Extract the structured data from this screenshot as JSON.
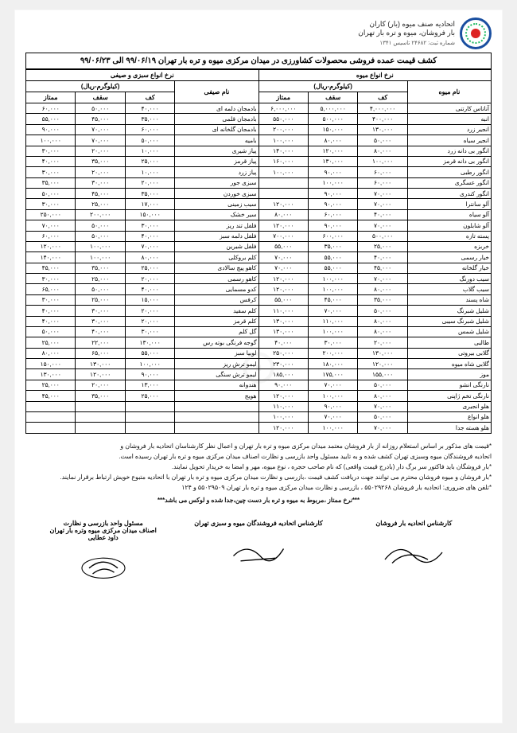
{
  "header": {
    "org_line1": "اتحادیه صنف میوه (بار) کاران",
    "org_line2": "بار فروشان، میوه و تره بار تهران",
    "reg": "شماره ثبت: ۲۴۶۸۲   تاسیس ۱۳۴۱"
  },
  "title": "کشف قیمت عمده فروشی محصولات کشاورزی در میدان مرکزی میوه و تره بار تهران ۹۹/۰۶/۱۹ الی ۹۹/۰۶/۲۳",
  "section_headers": {
    "fruit": "نرخ انواع میوه",
    "veg": "نرخ انواع سبزی و صیفی",
    "unit": "(کیلوگرم-ریال)",
    "name_fruit": "نام میوه",
    "name_veg": "نام صیفی",
    "kaf": "کف",
    "saghf": "سقف",
    "momtaz": "ممتاز"
  },
  "fruit_rows": [
    {
      "name": "آناناس کارتنی",
      "kaf": "۴,۰۰۰,۰۰۰",
      "saghf": "۵,۰۰۰,۰۰۰",
      "momtaz": "۶,۰۰۰,۰۰۰"
    },
    {
      "name": "انبه",
      "kaf": "۴۰۰,۰۰۰",
      "saghf": "۵۰۰,۰۰۰",
      "momtaz": "۵۵۰,۰۰۰"
    },
    {
      "name": "انجیر زرد",
      "kaf": "۱۳۰,۰۰۰",
      "saghf": "۱۵۰,۰۰۰",
      "momtaz": "۲۰۰,۰۰۰"
    },
    {
      "name": "انجیر سیاه",
      "kaf": "۵۰,۰۰۰",
      "saghf": "۸۰,۰۰۰",
      "momtaz": "۱۰۰,۰۰۰"
    },
    {
      "name": "انگور بی دانه زرد",
      "kaf": "۸۰,۰۰۰",
      "saghf": "۱۲۰,۰۰۰",
      "momtaz": "۱۴۰,۰۰۰"
    },
    {
      "name": "انگور بی دانه قرمز",
      "kaf": "۱۰۰,۰۰۰",
      "saghf": "۱۳۰,۰۰۰",
      "momtaz": "۱۶۰,۰۰۰"
    },
    {
      "name": "انگور رطبی",
      "kaf": "۶۰,۰۰۰",
      "saghf": "۹۰,۰۰۰",
      "momtaz": "۱۰۰,۰۰۰"
    },
    {
      "name": "انگور عسگری",
      "kaf": "۶۰,۰۰۰",
      "saghf": "۱۰۰,۰۰۰",
      "momtaz": ""
    },
    {
      "name": "انگور کندری",
      "kaf": "۷۰,۰۰۰",
      "saghf": "۹۰,۰۰۰",
      "momtaz": ""
    },
    {
      "name": "آلو سانترا",
      "kaf": "۷۰,۰۰۰",
      "saghf": "۹۰,۰۰۰",
      "momtaz": "۱۲۰,۰۰۰"
    },
    {
      "name": "آلو سیاه",
      "kaf": "۴۰,۰۰۰",
      "saghf": "۶۰,۰۰۰",
      "momtaz": "۸۰,۰۰۰"
    },
    {
      "name": "آلو شابلون",
      "kaf": "۷۰,۰۰۰",
      "saghf": "۹۰,۰۰۰",
      "momtaz": "۱۲۰,۰۰۰"
    },
    {
      "name": "پسته تازه",
      "kaf": "۵۰۰,۰۰۰",
      "saghf": "۶۰۰,۰۰۰",
      "momtaz": "۷۰۰,۰۰۰"
    },
    {
      "name": "خربزه",
      "kaf": "۲۵,۰۰۰",
      "saghf": "۳۵,۰۰۰",
      "momtaz": "۵۵,۰۰۰"
    },
    {
      "name": "خیار رسمی",
      "kaf": "۴۰,۰۰۰",
      "saghf": "۵۵,۰۰۰",
      "momtaz": "۷۰,۰۰۰"
    },
    {
      "name": "خیار گلخانه",
      "kaf": "۴۵,۰۰۰",
      "saghf": "۵۵,۰۰۰",
      "momtaz": "۷۰,۰۰۰"
    },
    {
      "name": "سیب دورنگ",
      "kaf": "۷۰,۰۰۰",
      "saghf": "۱۰۰,۰۰۰",
      "momtaz": "۱۲۰,۰۰۰"
    },
    {
      "name": "سیب گلاب",
      "kaf": "۸۰,۰۰۰",
      "saghf": "۱۰۰,۰۰۰",
      "momtaz": "۱۲۰,۰۰۰"
    },
    {
      "name": "شاه پسند",
      "kaf": "۳۵,۰۰۰",
      "saghf": "۴۵,۰۰۰",
      "momtaz": "۵۵,۰۰۰"
    },
    {
      "name": "شلیل شبرنگ",
      "kaf": "۵۰,۰۰۰",
      "saghf": "۷۰,۰۰۰",
      "momtaz": "۱۱۰,۰۰۰"
    },
    {
      "name": "شلیل شبرنگ سیبی",
      "kaf": "۸۰,۰۰۰",
      "saghf": "۱۱۰,۰۰۰",
      "momtaz": "۱۳۰,۰۰۰"
    },
    {
      "name": "شلیل شمس",
      "kaf": "۸۰,۰۰۰",
      "saghf": "۱۰۰,۰۰۰",
      "momtaz": "۱۳۰,۰۰۰"
    },
    {
      "name": "طالبی",
      "kaf": "۲۰,۰۰۰",
      "saghf": "۳۰,۰۰۰",
      "momtaz": "۴۰,۰۰۰"
    },
    {
      "name": "گلابی بیروتی",
      "kaf": "۱۳۰,۰۰۰",
      "saghf": "۲۰۰,۰۰۰",
      "momtaz": "۲۵۰,۰۰۰"
    },
    {
      "name": "گلابی شاه میوه",
      "kaf": "۱۲۰,۰۰۰",
      "saghf": "۱۸۰,۰۰۰",
      "momtaz": "۲۳۰,۰۰۰"
    },
    {
      "name": "موز",
      "kaf": "۱۵۵,۰۰۰",
      "saghf": "۱۷۵,۰۰۰",
      "momtaz": "۱۸۵,۰۰۰"
    },
    {
      "name": "نارنگی انشو",
      "kaf": "۵۰,۰۰۰",
      "saghf": "۷۰,۰۰۰",
      "momtaz": "۹۰,۰۰۰"
    },
    {
      "name": "نارنگی تخم ژاپنی",
      "kaf": "۸۰,۰۰۰",
      "saghf": "۱۰۰,۰۰۰",
      "momtaz": "۱۲۰,۰۰۰"
    },
    {
      "name": "هلو انجیری",
      "kaf": "۷۰,۰۰۰",
      "saghf": "۹۰,۰۰۰",
      "momtaz": "۱۱۰,۰۰۰"
    },
    {
      "name": "هلو انواع",
      "kaf": "۵۰,۰۰۰",
      "saghf": "۷۰,۰۰۰",
      "momtaz": "۱۰۰,۰۰۰"
    },
    {
      "name": "هلو هسته جدا",
      "kaf": "۷۰,۰۰۰",
      "saghf": "۱۰۰,۰۰۰",
      "momtaz": "۱۲۰,۰۰۰"
    }
  ],
  "veg_rows": [
    {
      "name": "بادمجان دلمه ای",
      "kaf": "۴۰,۰۰۰",
      "saghf": "۵۰,۰۰۰",
      "momtaz": "۶۰,۰۰۰"
    },
    {
      "name": "بادمجان قلمی",
      "kaf": "۳۵,۰۰۰",
      "saghf": "۴۵,۰۰۰",
      "momtaz": "۵۵,۰۰۰"
    },
    {
      "name": "بادمجان گلخانه ای",
      "kaf": "۶۰,۰۰۰",
      "saghf": "۷۰,۰۰۰",
      "momtaz": "۹۰,۰۰۰"
    },
    {
      "name": "بامیه",
      "kaf": "۵۰,۰۰۰",
      "saghf": "۷۰,۰۰۰",
      "momtaz": "۱۰۰,۰۰۰"
    },
    {
      "name": "پیاز شیری",
      "kaf": "۱۰,۰۰۰",
      "saghf": "۲۰,۰۰۰",
      "momtaz": "۳۰,۰۰۰"
    },
    {
      "name": "پیاز قرمز",
      "kaf": "۲۵,۰۰۰",
      "saghf": "۳۵,۰۰۰",
      "momtaz": "۴۰,۰۰۰"
    },
    {
      "name": "پیاز زرد",
      "kaf": "۱۰,۰۰۰",
      "saghf": "۲۰,۰۰۰",
      "momtaz": "۳۰,۰۰۰"
    },
    {
      "name": "سبزی جور",
      "kaf": "۲۰,۰۰۰",
      "saghf": "۳۰,۰۰۰",
      "momtaz": "۳۵,۰۰۰"
    },
    {
      "name": "سبزی خوردن",
      "kaf": "۳۵,۰۰۰",
      "saghf": "۴۵,۰۰۰",
      "momtaz": "۵۰,۰۰۰"
    },
    {
      "name": "سیب زمینی",
      "kaf": "۱۷,۰۰۰",
      "saghf": "۲۵,۰۰۰",
      "momtaz": "۳۰,۰۰۰"
    },
    {
      "name": "سیر خشک",
      "kaf": "۱۵۰,۰۰۰",
      "saghf": "۲۰۰,۰۰۰",
      "momtaz": "۲۵۰,۰۰۰"
    },
    {
      "name": "فلفل تند ریز",
      "kaf": "۳۰,۰۰۰",
      "saghf": "۵۰,۰۰۰",
      "momtaz": "۷۰,۰۰۰"
    },
    {
      "name": "فلفل دلمه سبز",
      "kaf": "۴۰,۰۰۰",
      "saghf": "۵۰,۰۰۰",
      "momtaz": "۶۰,۰۰۰"
    },
    {
      "name": "فلفل شیرین",
      "kaf": "۷۰,۰۰۰",
      "saghf": "۱۰۰,۰۰۰",
      "momtaz": "۱۲۰,۰۰۰"
    },
    {
      "name": "کلم بروکلی",
      "kaf": "۸۰,۰۰۰",
      "saghf": "۱۰۰,۰۰۰",
      "momtaz": "۱۴۰,۰۰۰"
    },
    {
      "name": "کاهو پیچ سالادی",
      "kaf": "۲۵,۰۰۰",
      "saghf": "۳۵,۰۰۰",
      "momtaz": "۴۵,۰۰۰"
    },
    {
      "name": "کاهو رسمی",
      "kaf": "۲۰,۰۰۰",
      "saghf": "۲۵,۰۰۰",
      "momtaz": "۳۰,۰۰۰"
    },
    {
      "name": "کدو مسمایی",
      "kaf": "۴۰,۰۰۰",
      "saghf": "۵۰,۰۰۰",
      "momtaz": "۶۵,۰۰۰"
    },
    {
      "name": "کرفس",
      "kaf": "۱۵,۰۰۰",
      "saghf": "۲۵,۰۰۰",
      "momtaz": "۳۰,۰۰۰"
    },
    {
      "name": "کلم سفید",
      "kaf": "۲۰,۰۰۰",
      "saghf": "۳۰,۰۰۰",
      "momtaz": "۴۰,۰۰۰"
    },
    {
      "name": "کلم قرمز",
      "kaf": "۲۰,۰۰۰",
      "saghf": "۳۰,۰۰۰",
      "momtaz": "۴۰,۰۰۰"
    },
    {
      "name": "گل کلم",
      "kaf": "۳۰,۰۰۰",
      "saghf": "۴۰,۰۰۰",
      "momtaz": "۵۰,۰۰۰"
    },
    {
      "name": "گوجه فرنگی بوته رس",
      "kaf": "۱۳۰,۰۰۰",
      "saghf": "۲۲,۰۰۰",
      "momtaz": "۲۵,۰۰۰"
    },
    {
      "name": "لوبیا سبز",
      "kaf": "۵۵,۰۰۰",
      "saghf": "۶۵,۰۰۰",
      "momtaz": "۸۰,۰۰۰"
    },
    {
      "name": "لیمو ترش ریز",
      "kaf": "۱۰۰,۰۰۰",
      "saghf": "۱۳۰,۰۰۰",
      "momtaz": "۱۵۰,۰۰۰"
    },
    {
      "name": "لیمو ترش سنگی",
      "kaf": "۹۰,۰۰۰",
      "saghf": "۱۲۰,۰۰۰",
      "momtaz": "۱۳۰,۰۰۰"
    },
    {
      "name": "هندوانه",
      "kaf": "۱۳,۰۰۰",
      "saghf": "۲۰,۰۰۰",
      "momtaz": "۲۵,۰۰۰"
    },
    {
      "name": "هویج",
      "kaf": "۲۵,۰۰۰",
      "saghf": "۳۵,۰۰۰",
      "momtaz": "۴۵,۰۰۰"
    },
    {
      "name": "",
      "kaf": "",
      "saghf": "",
      "momtaz": ""
    },
    {
      "name": "",
      "kaf": "",
      "saghf": "",
      "momtaz": ""
    },
    {
      "name": "",
      "kaf": "",
      "saghf": "",
      "momtaz": ""
    }
  ],
  "notes": [
    "*قیمت های مذکور بر اساس استعلام روزانه از بار فروشان معتمد میدان مرکزی میوه و تره بار تهران و اعمال نظر کارشناسان اتحادیه بار فروشان و",
    "اتحادیه فروشندگان میوه وسبزی تهران کشف شده و به تایید مسئول واحد بازرسی و نظارت اصناف میدان مرکزی میوه و تره بار تهران رسیده است.",
    "*بار فروشگان باید فاکتور سر برگ دار (بادرج قیمت واقعی) که نام صاحب حجره ، نوع میوه، مهر و امضا به خریدار تحویل نمایند.",
    "*بار فروشان و میوه فروشان محترم می توانند جهت دریافت کشف قیمت ،بازرسی و نظارت میدان مرکزی میوه و تره بار تهران با اتحادیه متبوع خویش ارتباط برقرار نمایند.",
    "*تلفن های ضروری: اتحادیه بار فروشان ۵۵۰۲۹۲۶۸ ، بازرسی و نظارت میدان مرکزی میوه و تره بار تهران ۵۵۰۲۹۵۰۹ و ۱۲۴",
    "***نرخ ممتاز ،مربوط به میوه و تره بار دست چین،جدا شده و لوکس می باشد***"
  ],
  "signatures": {
    "right_title": "کارشناس اتحادیه بار فروشان",
    "mid_title": "کارشناس اتحادیه فروشندگان میوه و سبزی تهران",
    "left_title": "مسئول واحد بازرسی و نظارت",
    "left_sub": "اصناف میدان مرکزی میوه وتره بار تهران",
    "left_name": "داود عطایی"
  }
}
